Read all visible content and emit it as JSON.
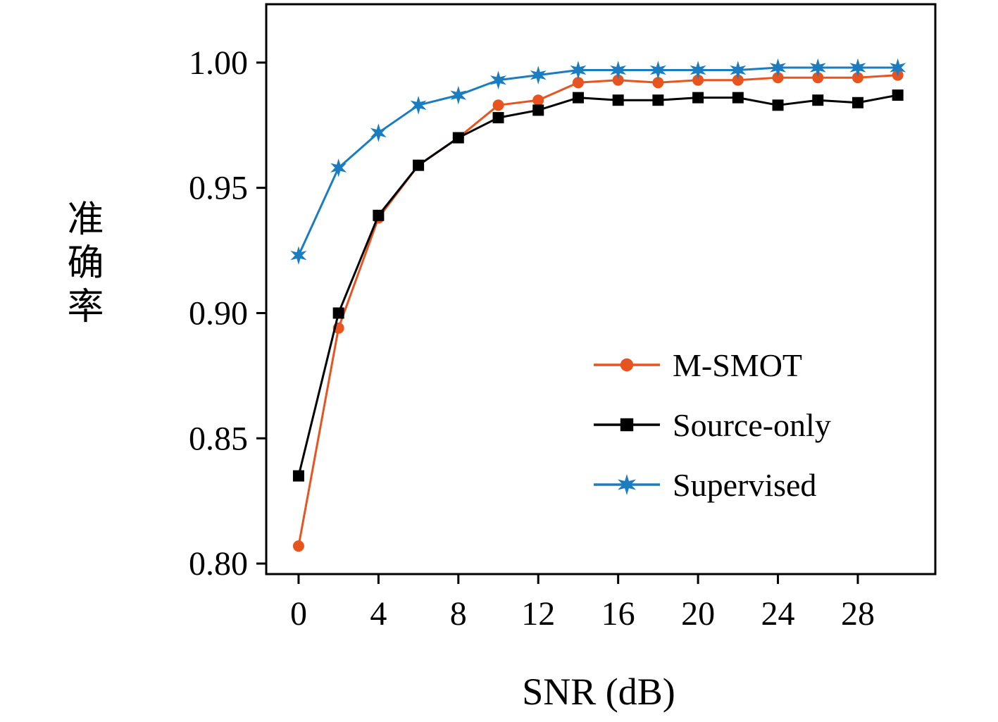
{
  "chart_data": {
    "type": "line",
    "title": "",
    "xlabel": "SNR (dB)",
    "ylabel": "准确率",
    "x": [
      0,
      2,
      4,
      6,
      8,
      10,
      12,
      14,
      16,
      18,
      20,
      22,
      24,
      26,
      28,
      30
    ],
    "series": [
      {
        "name": "M-SMOT",
        "color": "#e8541f",
        "marker": "circle",
        "values": [
          0.807,
          0.894,
          0.938,
          0.959,
          0.97,
          0.983,
          0.985,
          0.992,
          0.993,
          0.992,
          0.993,
          0.993,
          0.994,
          0.994,
          0.994,
          0.995
        ]
      },
      {
        "name": "Source-only",
        "color": "#000000",
        "marker": "square",
        "values": [
          0.835,
          0.9,
          0.939,
          0.959,
          0.97,
          0.978,
          0.981,
          0.986,
          0.985,
          0.985,
          0.986,
          0.986,
          0.983,
          0.985,
          0.984,
          0.987
        ]
      },
      {
        "name": "Supervised",
        "color": "#1b7dbf",
        "marker": "star",
        "values": [
          0.923,
          0.958,
          0.972,
          0.983,
          0.987,
          0.993,
          0.995,
          0.997,
          0.997,
          0.997,
          0.997,
          0.997,
          0.998,
          0.998,
          0.998,
          0.998
        ]
      }
    ],
    "xticks": [
      0,
      4,
      8,
      12,
      16,
      20,
      24,
      28
    ],
    "yticks": [
      0.8,
      0.85,
      0.9,
      0.95,
      1.0
    ],
    "xlim": [
      -1.62,
      31.88
    ],
    "ylim": [
      0.7958,
      1.0233
    ],
    "grid": false,
    "legend": {
      "position": "right-center",
      "entries": [
        "M-SMOT",
        "Source-only",
        "Supervised"
      ]
    }
  }
}
